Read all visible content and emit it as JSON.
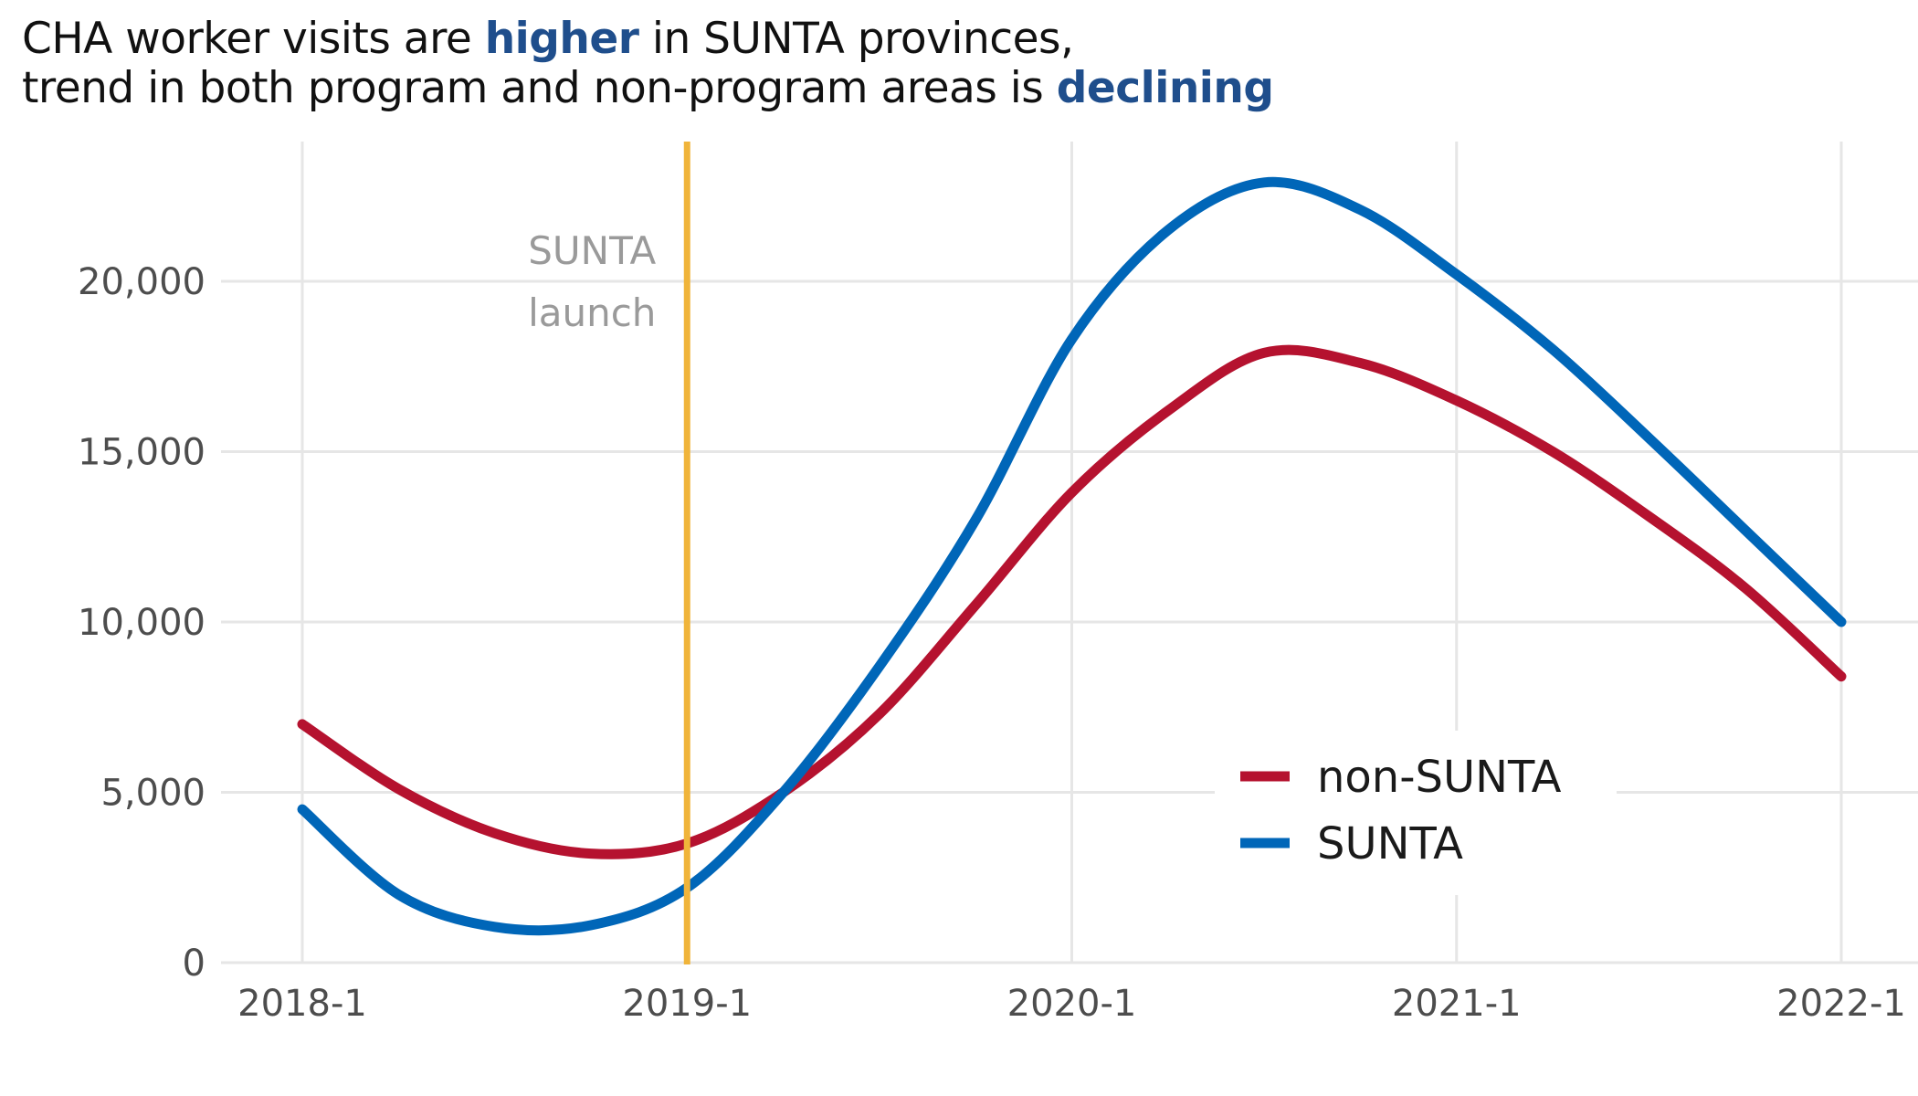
{
  "title": {
    "line1_a": "CHA worker visits are ",
    "line1_b": "higher",
    "line1_c": " in SUNTA provinces,",
    "line2_a": "trend in both program and non-program areas is ",
    "line2_b": "declining"
  },
  "chart_data": {
    "type": "line",
    "title": "CHA worker visits are higher in SUNTA provinces, trend in both program and non-program areas is declining",
    "xlabel": "",
    "ylabel": "",
    "x_ticks": [
      "2018-1",
      "2019-1",
      "2020-1",
      "2021-1",
      "2022-1"
    ],
    "xlim": [
      0,
      16
    ],
    "ylim": [
      0,
      24000
    ],
    "y_ticks": [
      0,
      5000,
      10000,
      15000,
      20000
    ],
    "y_tick_labels": [
      "0",
      "5,000",
      "10,000",
      "15,000",
      "20,000"
    ],
    "grid": true,
    "legend_position": "bottom-right",
    "x_unit": "quarters since 2018-1",
    "series": [
      {
        "name": "non-SUNTA",
        "color": "#b5122f",
        "x": [
          0,
          1,
          2,
          3,
          4,
          5,
          6,
          7,
          8,
          9,
          10,
          11,
          12,
          13,
          14,
          15,
          16
        ],
        "values": [
          7000,
          5100,
          3800,
          3200,
          3500,
          5000,
          7300,
          10500,
          13800,
          16200,
          17900,
          17600,
          16500,
          15000,
          13100,
          11000,
          8400
        ]
      },
      {
        "name": "SUNTA",
        "color": "#0066b8",
        "x": [
          0,
          1,
          2,
          3,
          4,
          5,
          6,
          7,
          8,
          9,
          10,
          11,
          12,
          13,
          14,
          15,
          16
        ],
        "values": [
          4500,
          2000,
          1050,
          1100,
          2200,
          5000,
          8700,
          13000,
          18300,
          21500,
          22900,
          22100,
          20200,
          18000,
          15400,
          12700,
          10000
        ]
      }
    ],
    "annotations": [
      {
        "label_line1": "SUNTA",
        "label_line2": "launch",
        "x": 4,
        "color": "#f0b43a"
      }
    ]
  }
}
